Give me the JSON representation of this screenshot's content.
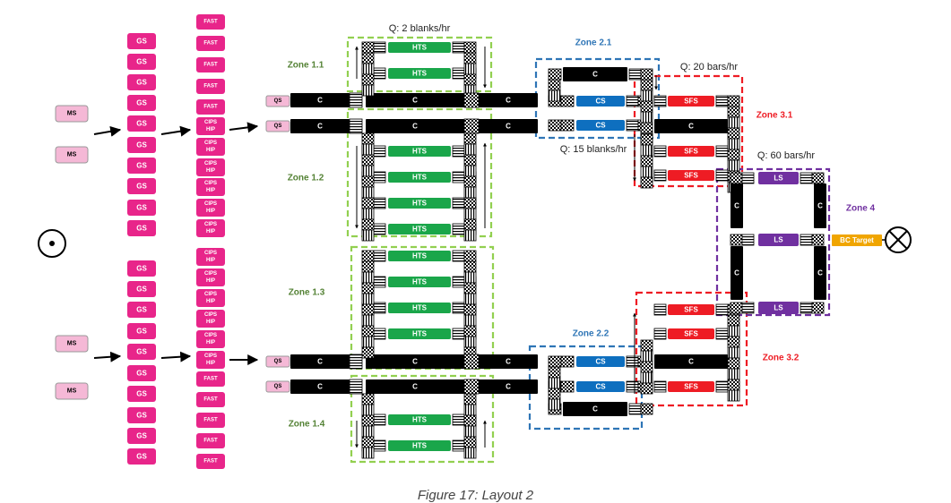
{
  "caption": "Figure 17: Layout 2",
  "colors": {
    "pink": "#e8258a",
    "light_pink": "#f5b8d6",
    "green": "#1aa64a",
    "blue": "#0e6fbf",
    "red": "#ee1c24",
    "purple": "#7030a0",
    "orange": "#f0a500",
    "zone_green": "#92d050",
    "zone_blue": "#2e75b6",
    "zone_red": "#ee1c24",
    "zone_purple": "#7030a0",
    "zone_green_text": "#548235",
    "zone_blue_text": "#2e75b6"
  },
  "labels": {
    "ms": "MS",
    "gs": "GS",
    "fast": "FAST",
    "cips": "CIPS",
    "hip": "HIP",
    "qs": "QS",
    "c": "C",
    "hts": "HTS",
    "cs": "CS",
    "sfs": "SFS",
    "ls": "LS",
    "bc_target": "BC Target"
  },
  "zones": {
    "z11": "Zone 1.1",
    "z12": "Zone 1.2",
    "z13": "Zone 1.3",
    "z14": "Zone 1.4",
    "z21": "Zone 2.1",
    "z22": "Zone 2.2",
    "z31": "Zone 3.1",
    "z32": "Zone 3.2",
    "z4": "Zone 4"
  },
  "rates": {
    "q_blanks_2": "Q: 2 blanks/hr",
    "q_blanks_15": "Q: 15 blanks/hr",
    "q_bars_20": "Q: 20 bars/hr",
    "q_bars_60": "Q: 60 bars/hr"
  },
  "icons": {
    "source": "circle-dot-icon",
    "sink": "circle-cross-icon"
  }
}
